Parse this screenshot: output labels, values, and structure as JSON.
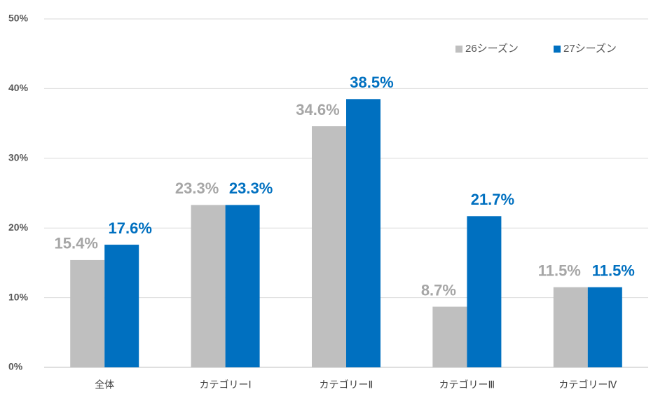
{
  "chart_data": {
    "type": "bar",
    "categories": [
      "全体",
      "カテゴリーⅠ",
      "カテゴリーⅡ",
      "カテゴリーⅢ",
      "カテゴリーⅣ"
    ],
    "series": [
      {
        "name": "26シーズン",
        "color": "#bfbfbf",
        "label_color": "#a6a6a6",
        "values": [
          15.4,
          23.3,
          34.6,
          8.7,
          11.5
        ],
        "value_labels": [
          "15.4%",
          "23.3%",
          "34.6%",
          "8.7%",
          "11.5%"
        ]
      },
      {
        "name": "27シーズン",
        "color": "#0070c0",
        "label_color": "#0070c0",
        "values": [
          17.6,
          23.3,
          38.5,
          21.7,
          11.5
        ],
        "value_labels": [
          "17.6%",
          "23.3%",
          "38.5%",
          "21.7%",
          "11.5%"
        ]
      }
    ],
    "ylim": [
      0,
      50
    ],
    "yticks": [
      {
        "value": 0,
        "label": "0%"
      },
      {
        "value": 10,
        "label": "10%"
      },
      {
        "value": 20,
        "label": "20%"
      },
      {
        "value": 30,
        "label": "30%"
      },
      {
        "value": 40,
        "label": "40%"
      },
      {
        "value": 50,
        "label": "50%"
      }
    ],
    "grid": true,
    "legend": "top-right"
  }
}
